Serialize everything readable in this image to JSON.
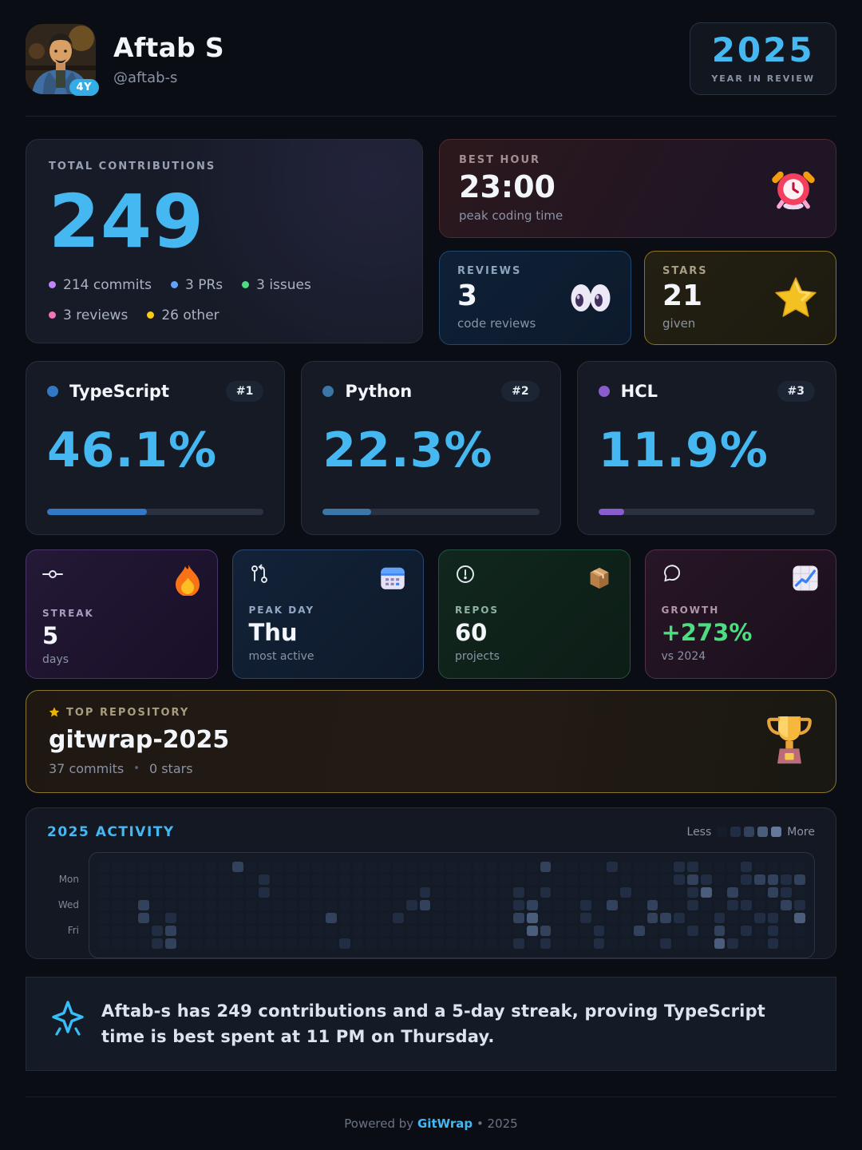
{
  "header": {
    "name": "Aftab S",
    "handle": "@aftab-s",
    "avatar_badge": "4Y",
    "year": "2025",
    "year_caption": "YEAR IN REVIEW"
  },
  "contributions": {
    "label": "TOTAL CONTRIBUTIONS",
    "total": "249",
    "breakdown": [
      {
        "label": "214 commits",
        "color": "#c084fc"
      },
      {
        "label": "3 PRs",
        "color": "#60a5fa"
      },
      {
        "label": "3 issues",
        "color": "#4ade80"
      },
      {
        "label": "3 reviews",
        "color": "#f472b6"
      },
      {
        "label": "26 other",
        "color": "#facc15"
      }
    ]
  },
  "best_hour": {
    "label": "BEST HOUR",
    "value": "23:00",
    "caption": "peak coding time",
    "icon": "alarm-clock"
  },
  "reviews": {
    "label": "REVIEWS",
    "value": "3",
    "caption": "code reviews",
    "icon": "eyes"
  },
  "stars": {
    "label": "STARS",
    "value": "21",
    "caption": "given",
    "icon": "star"
  },
  "languages": [
    {
      "name": "TypeScript",
      "rank": "#1",
      "percent": "46.1%",
      "percent_value": 46.1,
      "color": "#3178c6"
    },
    {
      "name": "Python",
      "rank": "#2",
      "percent": "22.3%",
      "percent_value": 22.3,
      "color": "#3a76a8"
    },
    {
      "name": "HCL",
      "rank": "#3",
      "percent": "11.9%",
      "percent_value": 11.9,
      "color": "#8a5dcf"
    }
  ],
  "stats": [
    {
      "label": "STREAK",
      "value": "5",
      "caption": "days",
      "line_icon": "git-commit",
      "emoji_icon": "fire"
    },
    {
      "label": "PEAK DAY",
      "value": "Thu",
      "caption": "most active",
      "line_icon": "git-pull-request",
      "emoji_icon": "calendar"
    },
    {
      "label": "REPOS",
      "value": "60",
      "caption": "projects",
      "line_icon": "issue-circle",
      "emoji_icon": "package"
    },
    {
      "label": "GROWTH",
      "value": "+273%",
      "caption": "vs 2024",
      "line_icon": "comment-bubble",
      "emoji_icon": "chart-increasing",
      "value_color": "#4ade80"
    }
  ],
  "top_repo": {
    "label": "TOP REPOSITORY",
    "name": "gitwrap-2025",
    "commits": "37 commits",
    "separator": "•",
    "stars": "0 stars",
    "icon": "trophy"
  },
  "activity": {
    "title": "2025 ACTIVITY",
    "legend_less": "Less",
    "legend_more": "More",
    "day_labels": [
      "Mon",
      "Wed",
      "Fri"
    ],
    "day_label_rows": [
      1,
      3,
      5
    ]
  },
  "chart_data": {
    "type": "heatmap",
    "title": "2025 ACTIVITY",
    "rows": 7,
    "cols": 53,
    "visible_row_labels": {
      "1": "Mon",
      "3": "Wed",
      "5": "Fri"
    },
    "legend": {
      "less": "Less",
      "more": "More"
    },
    "level_colors": [
      "#151d2b",
      "#202d42",
      "#32425d",
      "#4a5d7c",
      "#64789a"
    ],
    "levels": [
      "00000000002000000000000000000000020000100001100010000",
      "00000000000010000000000000000000000000000001210012212",
      "00000000000010000000000010000001010000010000130200210",
      "00020000000000000000000120000001200010200200100110021",
      "00020100000000000200001000000002300010000221001001103",
      "00001200000000000000000000000000320001002000102010100",
      "00001200000000000010000000000001010001000010003100100"
    ]
  },
  "summary": {
    "icon": "sparkles",
    "text": "Aftab-s has 249 contributions and a 5-day streak, proving TypeScript time is best spent at 11 PM on Thursday."
  },
  "footer": {
    "powered_by": "Powered by",
    "brand": "GitWrap",
    "suffix": "• 2025"
  }
}
